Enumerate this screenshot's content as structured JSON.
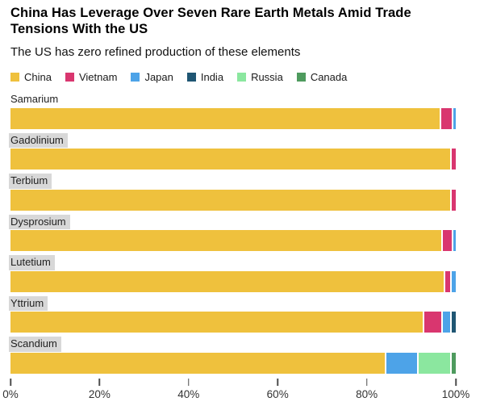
{
  "header": {
    "title": "China Has Leverage Over Seven Rare Earth Metals Amid Trade Tensions With the US",
    "subtitle": "The US has zero refined production of these elements"
  },
  "legend": [
    {
      "label": "China",
      "color": "#EFC13D"
    },
    {
      "label": "Vietnam",
      "color": "#D9366F"
    },
    {
      "label": "Japan",
      "color": "#4DA3E8"
    },
    {
      "label": "India",
      "color": "#1F5673"
    },
    {
      "label": "Russia",
      "color": "#8BE79F"
    },
    {
      "label": "Canada",
      "color": "#4E9B5E"
    }
  ],
  "chart_data": {
    "type": "bar",
    "orientation": "horizontal",
    "stacked": true,
    "unit": "% share of refined production",
    "categories": [
      "Samarium",
      "Gadolinium",
      "Terbium",
      "Dysprosium",
      "Lutetium",
      "Yttrium",
      "Scandium"
    ],
    "category_label_highlight": [
      false,
      true,
      true,
      true,
      true,
      true,
      true
    ],
    "series": [
      {
        "name": "China",
        "color": "#EFC13D",
        "values": [
          97,
          99,
          99,
          97.5,
          98,
          93.5,
          85
        ]
      },
      {
        "name": "Vietnam",
        "color": "#D9366F",
        "values": [
          2.5,
          1,
          1,
          2,
          1,
          4,
          0
        ]
      },
      {
        "name": "Japan",
        "color": "#4DA3E8",
        "values": [
          0.5,
          0,
          0,
          0.5,
          1,
          1.5,
          7
        ]
      },
      {
        "name": "India",
        "color": "#1F5673",
        "values": [
          0,
          0,
          0,
          0,
          0,
          1,
          0
        ]
      },
      {
        "name": "Russia",
        "color": "#8BE79F",
        "values": [
          0,
          0,
          0,
          0,
          0,
          0,
          7
        ]
      },
      {
        "name": "Canada",
        "color": "#4E9B5E",
        "values": [
          0,
          0,
          0,
          0,
          0,
          0,
          1
        ]
      }
    ],
    "x_axis": {
      "min": 0,
      "max": 100,
      "ticks": [
        "0%",
        "20%",
        "40%",
        "60%",
        "80%",
        "100%"
      ],
      "grid": false
    },
    "legend_position": "top"
  }
}
